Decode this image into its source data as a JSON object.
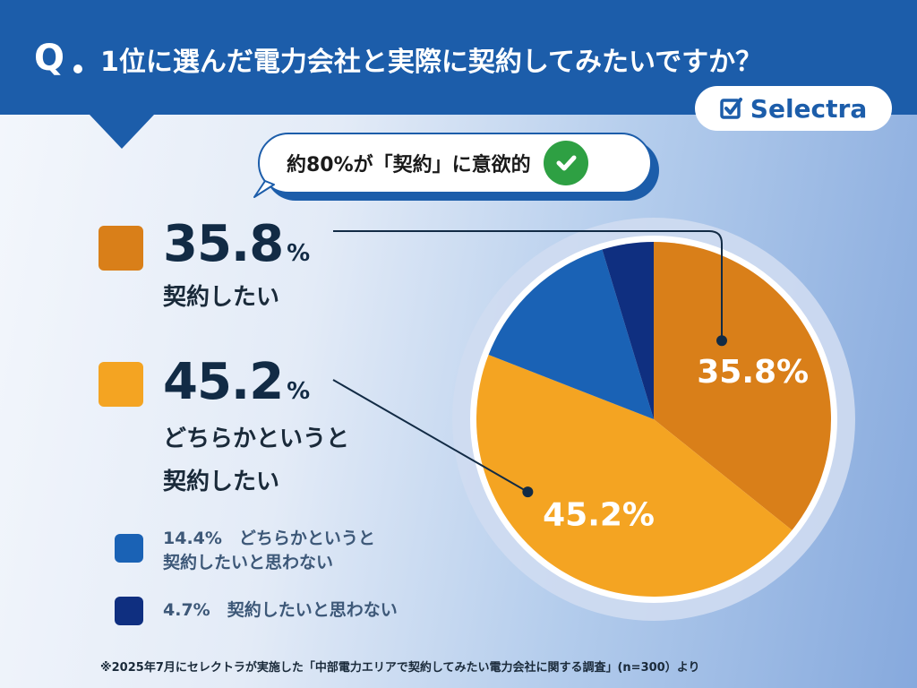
{
  "header": {
    "q_mark": "Q",
    "title": "1位に選んだ電力会社と実際に契約してみたいですか？"
  },
  "brand": {
    "name": "Selectra",
    "icon": "check-square-icon"
  },
  "callout": {
    "text": "約80%が「契約」に意欲的",
    "icon": "check-circle-icon"
  },
  "legend": [
    {
      "value": "35.8",
      "unit": "%",
      "label_lines": [
        "契約したい"
      ]
    },
    {
      "value": "45.2",
      "unit": "%",
      "label_lines": [
        "どちらかというと",
        "契約したい"
      ]
    },
    {
      "text_lines": [
        "14.4%　どちらかというと",
        "契約したいと思わない"
      ]
    },
    {
      "text_lines": [
        "4.7%　契約したいと思わない"
      ]
    }
  ],
  "footnote": "※2025年7月にセレクトラが実施した「中部電力エリアで契約してみたい電力会社に関する調査」(n=300）より",
  "colors": {
    "header": "#1c5daa",
    "want": "#d97f19",
    "somewhat_want": "#f4a422",
    "somewhat_not": "#1a62b5",
    "not": "#0f2f80",
    "check": "#2ea043"
  },
  "chart_data": {
    "type": "pie",
    "title": "1位に選んだ電力会社と実際に契約してみたいですか？",
    "total_n": 300,
    "slices": [
      {
        "label": "契約したい",
        "value": 35.8,
        "data_label": "35.8%",
        "color": "#d97f19"
      },
      {
        "label": "どちらかというと契約したい",
        "value": 45.2,
        "data_label": "45.2%",
        "color": "#f4a422"
      },
      {
        "label": "どちらかというと契約したいと思わない",
        "value": 14.4,
        "color": "#1a62b5"
      },
      {
        "label": "契約したいと思わない",
        "value": 4.7,
        "color": "#0f2f80"
      }
    ],
    "legend": "left"
  }
}
